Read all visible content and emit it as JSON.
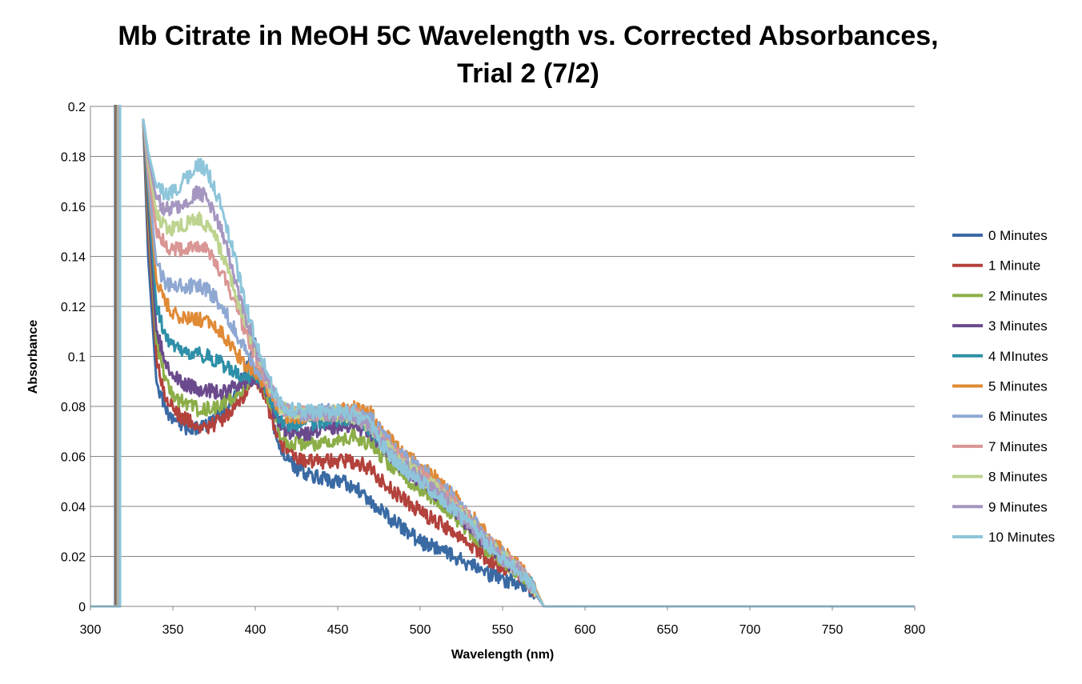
{
  "chart_data": {
    "type": "line",
    "title_line1": "Mb Citrate in MeOH 5C Wavelength vs. Corrected Absorbances,",
    "title_line2": "Trial 2 (7/2)",
    "xlabel": "Wavelength (nm)",
    "ylabel": "Absorbance",
    "xlim": [
      300,
      800
    ],
    "ylim": [
      0,
      0.2
    ],
    "xticks": [
      "300",
      "350",
      "400",
      "450",
      "500",
      "550",
      "600",
      "650",
      "700",
      "750",
      "800"
    ],
    "yticks": [
      "0",
      "0.02",
      "0.04",
      "0.06",
      "0.08",
      "0.1",
      "0.12",
      "0.14",
      "0.16",
      "0.18",
      "0.2"
    ],
    "grid": "horizontal",
    "legend_position": "right",
    "x": [
      332,
      335,
      340,
      345,
      350,
      355,
      360,
      365,
      370,
      375,
      380,
      385,
      390,
      395,
      400,
      405,
      410,
      415,
      420,
      430,
      440,
      450,
      460,
      470,
      480,
      490,
      500,
      510,
      520,
      530,
      540,
      550,
      560,
      565,
      570,
      575
    ],
    "series": [
      {
        "name": "0 Minutes",
        "color": "#3A6AA4",
        "values": [
          0.195,
          0.14,
          0.09,
          0.08,
          0.075,
          0.073,
          0.071,
          0.071,
          0.072,
          0.075,
          0.077,
          0.082,
          0.088,
          0.095,
          0.105,
          0.09,
          0.075,
          0.062,
          0.058,
          0.053,
          0.051,
          0.05,
          0.048,
          0.042,
          0.036,
          0.031,
          0.026,
          0.023,
          0.02,
          0.017,
          0.013,
          0.011,
          0.009,
          0.008,
          0.005,
          0.0
        ]
      },
      {
        "name": "1 Minute",
        "color": "#B3413C",
        "values": [
          0.195,
          0.15,
          0.1,
          0.085,
          0.079,
          0.076,
          0.074,
          0.072,
          0.072,
          0.073,
          0.075,
          0.078,
          0.082,
          0.086,
          0.092,
          0.086,
          0.075,
          0.066,
          0.062,
          0.058,
          0.058,
          0.058,
          0.058,
          0.055,
          0.048,
          0.043,
          0.038,
          0.034,
          0.03,
          0.025,
          0.019,
          0.016,
          0.012,
          0.01,
          0.006,
          0.0
        ]
      },
      {
        "name": "2 Minutes",
        "color": "#8CAE48",
        "values": [
          0.195,
          0.155,
          0.105,
          0.092,
          0.085,
          0.082,
          0.08,
          0.079,
          0.079,
          0.08,
          0.081,
          0.083,
          0.086,
          0.089,
          0.092,
          0.088,
          0.078,
          0.07,
          0.066,
          0.064,
          0.066,
          0.067,
          0.068,
          0.065,
          0.058,
          0.052,
          0.047,
          0.042,
          0.036,
          0.03,
          0.023,
          0.018,
          0.013,
          0.01,
          0.006,
          0.0
        ]
      },
      {
        "name": "3 Minutes",
        "color": "#6A4A8C",
        "values": [
          0.195,
          0.16,
          0.11,
          0.099,
          0.093,
          0.09,
          0.088,
          0.087,
          0.086,
          0.086,
          0.086,
          0.087,
          0.088,
          0.09,
          0.092,
          0.089,
          0.08,
          0.073,
          0.07,
          0.069,
          0.071,
          0.072,
          0.073,
          0.069,
          0.062,
          0.055,
          0.05,
          0.045,
          0.039,
          0.032,
          0.025,
          0.019,
          0.014,
          0.011,
          0.006,
          0.0
        ]
      },
      {
        "name": "4 MInutes",
        "color": "#2E90A8",
        "values": [
          0.195,
          0.165,
          0.12,
          0.11,
          0.104,
          0.102,
          0.101,
          0.101,
          0.1,
          0.099,
          0.097,
          0.095,
          0.093,
          0.092,
          0.092,
          0.09,
          0.082,
          0.075,
          0.073,
          0.073,
          0.074,
          0.075,
          0.075,
          0.071,
          0.064,
          0.057,
          0.052,
          0.047,
          0.041,
          0.034,
          0.027,
          0.02,
          0.015,
          0.011,
          0.006,
          0.0
        ]
      },
      {
        "name": "5 Minutes",
        "color": "#E08A36",
        "values": [
          0.195,
          0.17,
          0.13,
          0.122,
          0.117,
          0.115,
          0.115,
          0.115,
          0.114,
          0.112,
          0.109,
          0.105,
          0.1,
          0.096,
          0.093,
          0.09,
          0.084,
          0.078,
          0.076,
          0.076,
          0.077,
          0.078,
          0.079,
          0.077,
          0.068,
          0.061,
          0.056,
          0.051,
          0.045,
          0.037,
          0.029,
          0.022,
          0.016,
          0.012,
          0.007,
          0.0
        ]
      },
      {
        "name": "6 Minutes",
        "color": "#8FA8D2",
        "values": [
          0.195,
          0.172,
          0.137,
          0.13,
          0.128,
          0.128,
          0.128,
          0.129,
          0.127,
          0.124,
          0.12,
          0.114,
          0.107,
          0.101,
          0.096,
          0.092,
          0.086,
          0.08,
          0.078,
          0.077,
          0.078,
          0.078,
          0.078,
          0.075,
          0.067,
          0.06,
          0.055,
          0.05,
          0.044,
          0.036,
          0.028,
          0.021,
          0.015,
          0.011,
          0.006,
          0.0
        ]
      },
      {
        "name": "7 Minutes",
        "color": "#D99694",
        "values": [
          0.195,
          0.175,
          0.15,
          0.145,
          0.143,
          0.143,
          0.144,
          0.145,
          0.143,
          0.139,
          0.133,
          0.126,
          0.117,
          0.108,
          0.1,
          0.093,
          0.086,
          0.08,
          0.078,
          0.077,
          0.077,
          0.077,
          0.077,
          0.073,
          0.065,
          0.058,
          0.053,
          0.048,
          0.042,
          0.035,
          0.027,
          0.02,
          0.015,
          0.011,
          0.006,
          0.0
        ]
      },
      {
        "name": "8 Minutes",
        "color": "#BDD38F",
        "values": [
          0.195,
          0.178,
          0.157,
          0.152,
          0.151,
          0.152,
          0.154,
          0.155,
          0.153,
          0.148,
          0.141,
          0.132,
          0.121,
          0.111,
          0.102,
          0.094,
          0.086,
          0.08,
          0.078,
          0.077,
          0.077,
          0.077,
          0.076,
          0.072,
          0.064,
          0.057,
          0.052,
          0.047,
          0.041,
          0.034,
          0.026,
          0.02,
          0.014,
          0.011,
          0.006,
          0.0
        ]
      },
      {
        "name": "9 Minutes",
        "color": "#A596C0",
        "values": [
          0.195,
          0.18,
          0.163,
          0.159,
          0.159,
          0.161,
          0.163,
          0.166,
          0.164,
          0.158,
          0.149,
          0.138,
          0.126,
          0.114,
          0.104,
          0.095,
          0.087,
          0.08,
          0.078,
          0.077,
          0.077,
          0.077,
          0.076,
          0.072,
          0.063,
          0.056,
          0.051,
          0.046,
          0.04,
          0.033,
          0.026,
          0.019,
          0.014,
          0.01,
          0.006,
          0.0
        ]
      },
      {
        "name": "10 Minutes",
        "color": "#8EC5DA",
        "values": [
          0.195,
          0.182,
          0.168,
          0.165,
          0.166,
          0.169,
          0.173,
          0.177,
          0.175,
          0.168,
          0.158,
          0.146,
          0.132,
          0.119,
          0.107,
          0.097,
          0.088,
          0.081,
          0.079,
          0.078,
          0.078,
          0.078,
          0.077,
          0.072,
          0.062,
          0.055,
          0.05,
          0.045,
          0.039,
          0.032,
          0.025,
          0.019,
          0.014,
          0.01,
          0.006,
          0.0
        ]
      }
    ]
  }
}
